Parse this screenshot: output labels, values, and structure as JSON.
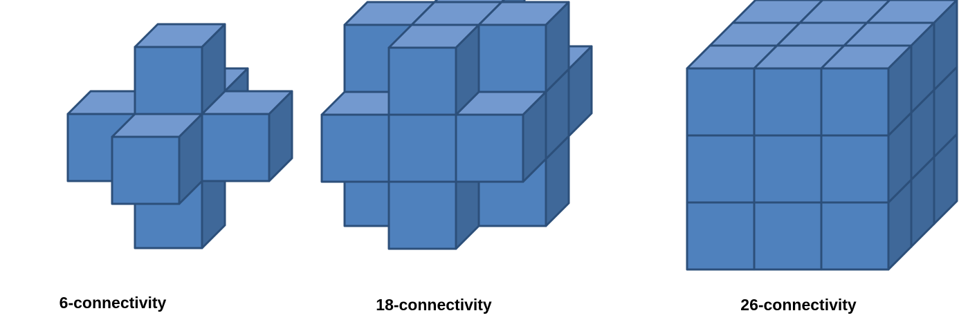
{
  "figures": [
    {
      "caption": "6-connectivity"
    },
    {
      "caption": "18-connectivity"
    },
    {
      "caption": "26-connectivity"
    }
  ],
  "colors": {
    "front": "#4f81bd",
    "top": "#7399cf",
    "side": "#3f6899",
    "edge": "#2c4f7a"
  }
}
